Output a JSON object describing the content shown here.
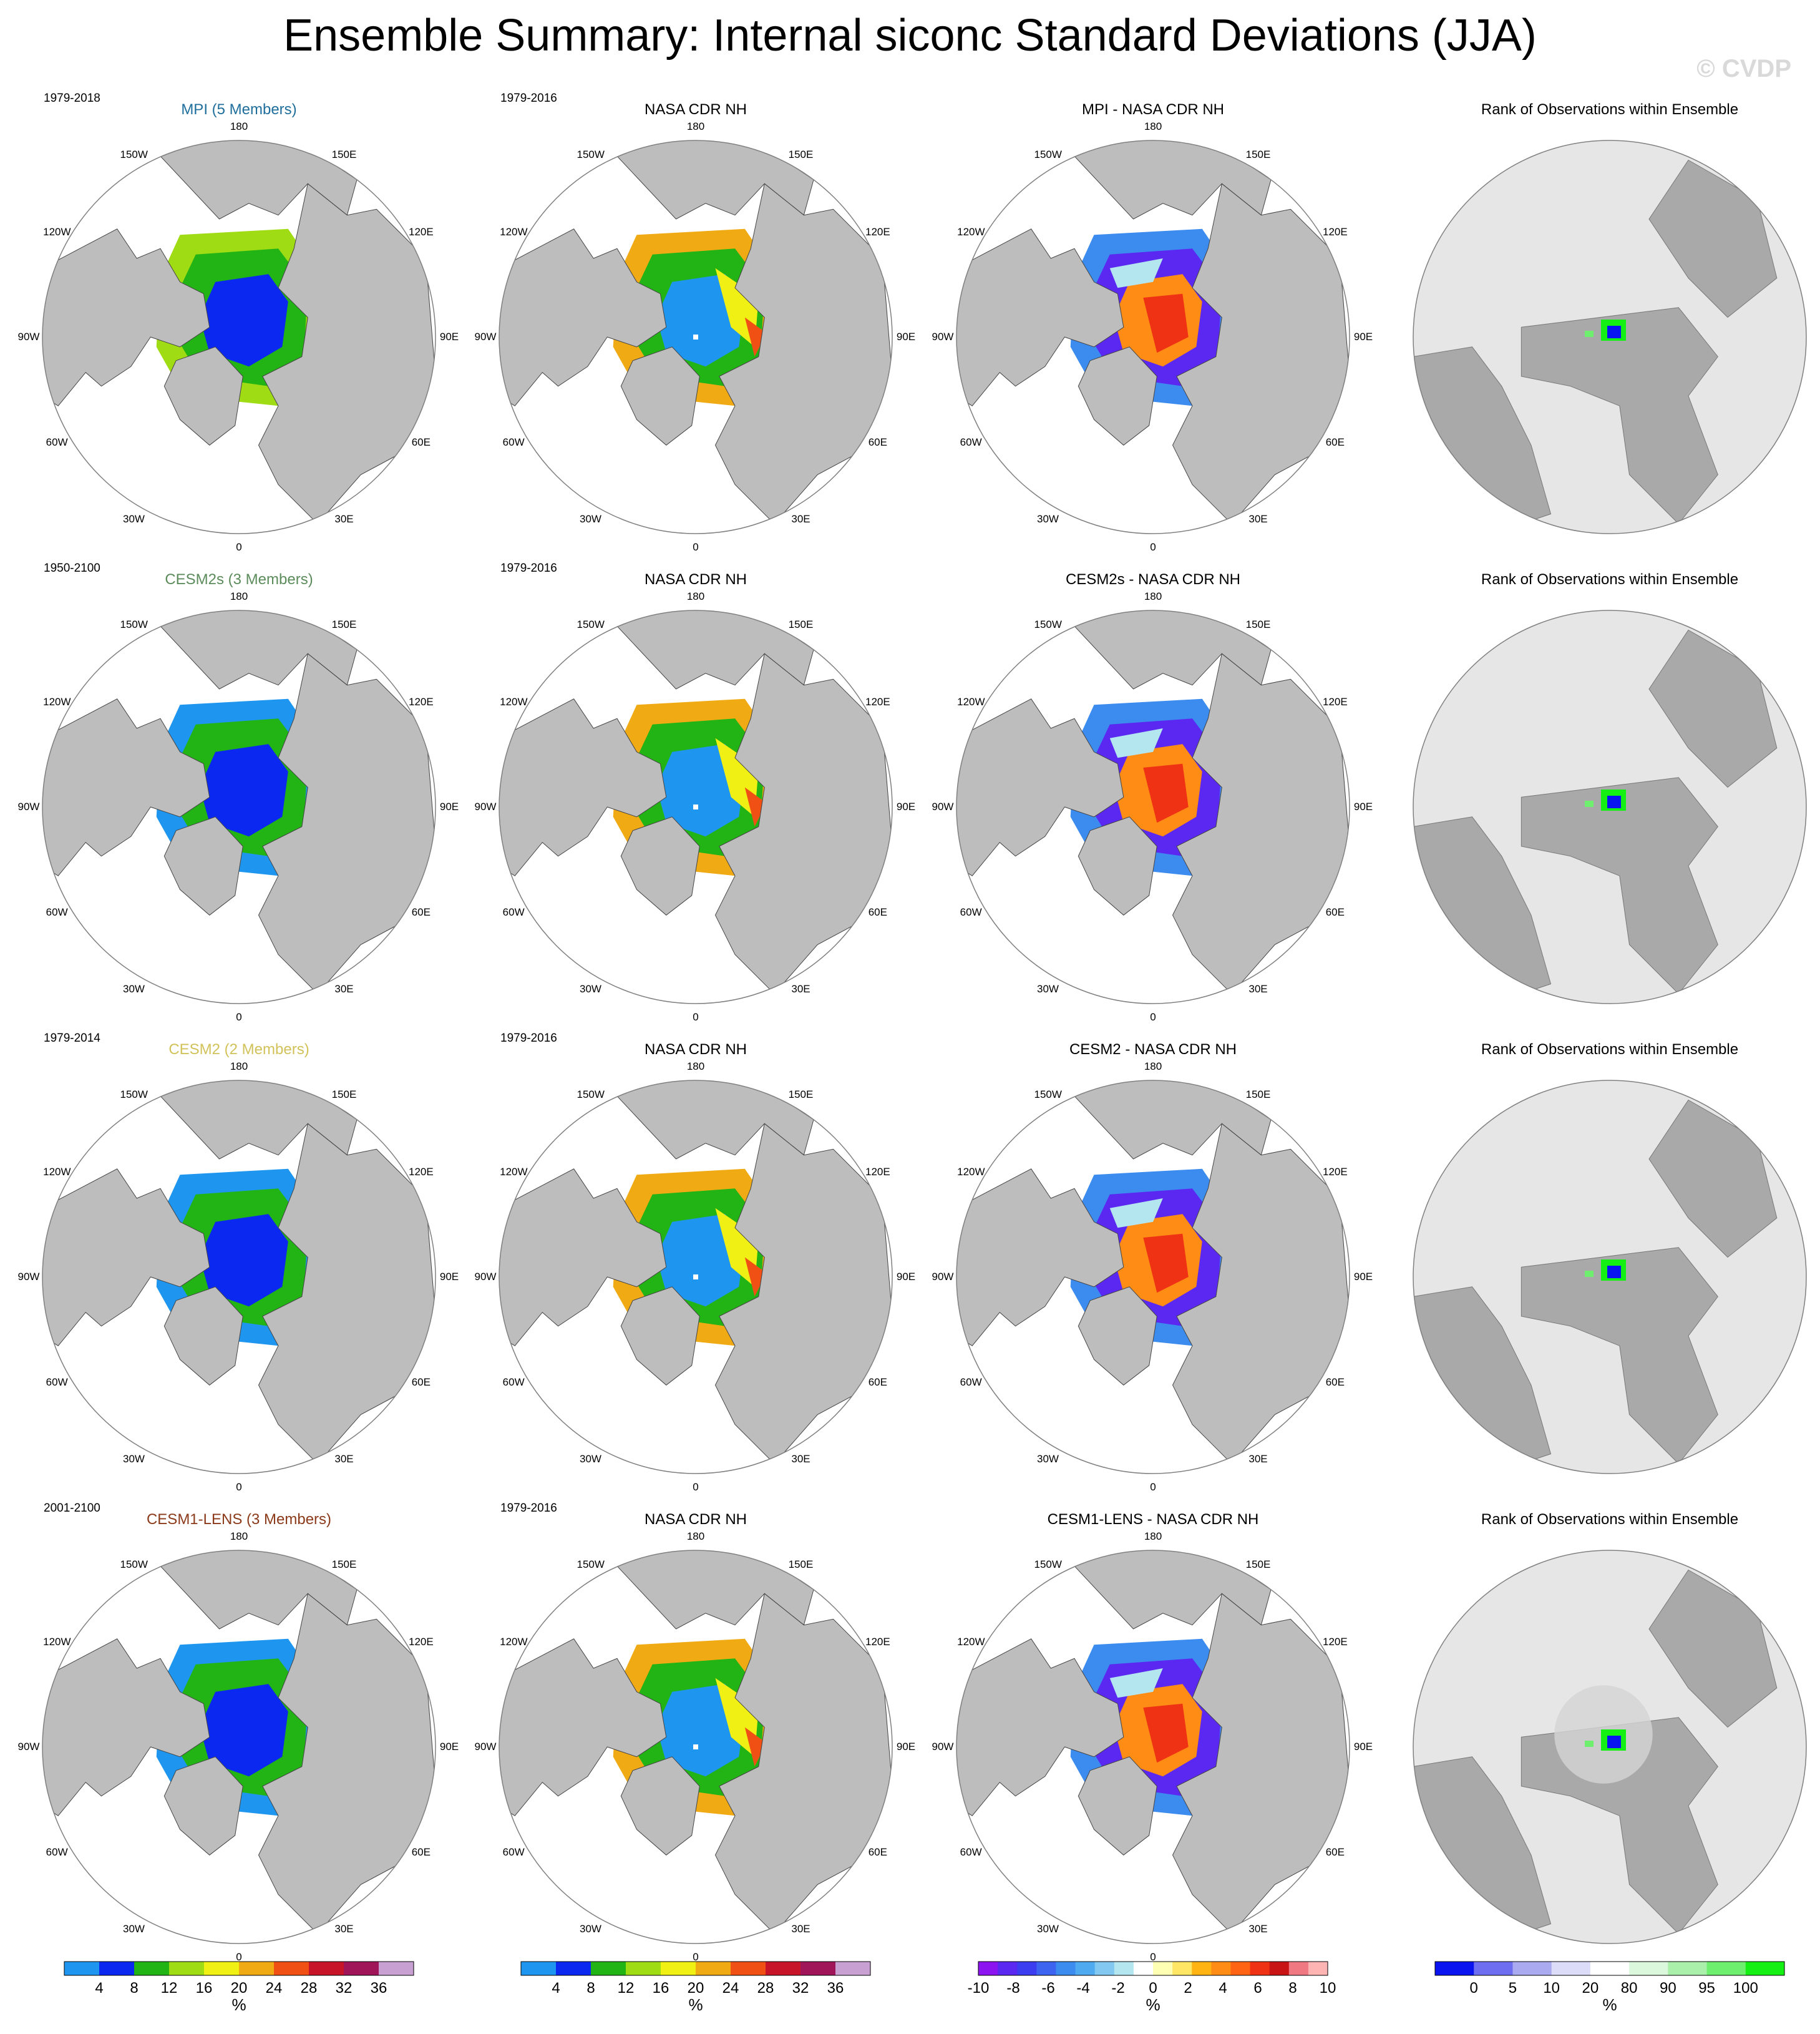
{
  "title": "Ensemble Summary: Internal siconc Standard Deviations (JJA)",
  "watermark": "© CVDP",
  "longitude_labels": [
    "180",
    "150E",
    "120E",
    "90E",
    "60E",
    "30E",
    "0",
    "30W",
    "60W",
    "90W",
    "120W",
    "150W"
  ],
  "rows": [
    {
      "model": {
        "title": "MPI (5 Members)",
        "title_color": "#1f6e9c",
        "period": "1979-2018"
      },
      "obs": {
        "title": "NASA CDR NH",
        "period": "1979-2016"
      },
      "diff": {
        "title": "MPI - NASA CDR NH"
      },
      "rank": {
        "title": "Rank of Observations within Ensemble"
      }
    },
    {
      "model": {
        "title": "CESM2s (3 Members)",
        "title_color": "#5c8c5c",
        "period": "1950-2100"
      },
      "obs": {
        "title": "NASA CDR NH",
        "period": "1979-2016"
      },
      "diff": {
        "title": "CESM2s - NASA CDR NH"
      },
      "rank": {
        "title": "Rank of Observations within Ensemble"
      }
    },
    {
      "model": {
        "title": "CESM2 (2 Members)",
        "title_color": "#d2c25a",
        "period": "1979-2014"
      },
      "obs": {
        "title": "NASA CDR NH",
        "period": "1979-2016"
      },
      "diff": {
        "title": "CESM2 - NASA CDR NH"
      },
      "rank": {
        "title": "Rank of Observations within Ensemble"
      }
    },
    {
      "model": {
        "title": "CESM1-LENS (3 Members)",
        "title_color": "#8b3a1a",
        "period": "2001-2100"
      },
      "obs": {
        "title": "NASA CDR NH",
        "period": "1979-2016"
      },
      "diff": {
        "title": "CESM1-LENS - NASA CDR NH"
      },
      "rank": {
        "title": "Rank of Observations within Ensemble"
      }
    }
  ],
  "colorbars": {
    "stddev": {
      "unit": "%",
      "ticks": [
        "4",
        "8",
        "12",
        "16",
        "20",
        "24",
        "28",
        "32",
        "36"
      ],
      "colors": [
        "#1e96f0",
        "#0a28f0",
        "#22b414",
        "#a0dc14",
        "#f0f014",
        "#f0aa14",
        "#f05014",
        "#c81428",
        "#a0145a",
        "#c8a0d2"
      ]
    },
    "diff": {
      "unit": "%",
      "ticks": [
        "-10",
        "-8",
        "-6",
        "-4",
        "-2",
        "0",
        "2",
        "4",
        "6",
        "8",
        "10"
      ],
      "colors": [
        "#8c14f0",
        "#5a28f0",
        "#3c3cf0",
        "#3c64f0",
        "#3c8cf0",
        "#50aaf0",
        "#82c8f0",
        "#b4e6f0",
        "#ffffff",
        "#ffffb4",
        "#ffe664",
        "#ffb414",
        "#ff8c14",
        "#ff6414",
        "#f03214",
        "#c81414",
        "#f07882",
        "#ffb4b4"
      ]
    },
    "rank": {
      "unit": "%",
      "ticks": [
        "0",
        "5",
        "10",
        "20",
        "80",
        "90",
        "95",
        "100"
      ],
      "colors": [
        "#0a14f0",
        "#6e6ef0",
        "#aaaaf0",
        "#dcdcf8",
        "#ffffff",
        "#dcf8dc",
        "#aaf0aa",
        "#6ef06e",
        "#14f014"
      ]
    }
  }
}
